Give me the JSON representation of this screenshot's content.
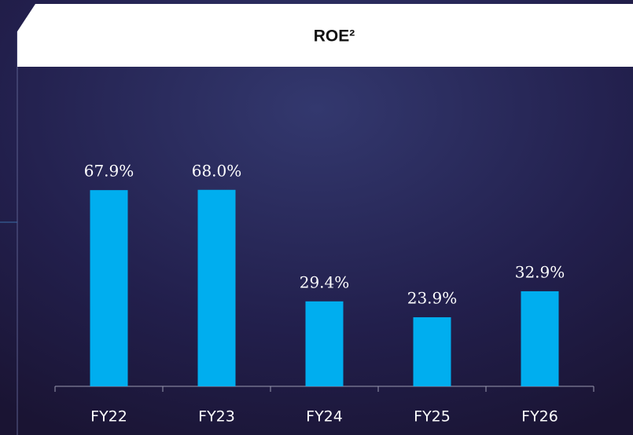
{
  "chart_data": {
    "type": "bar",
    "title": "ROE²",
    "categories": [
      "FY22",
      "FY23",
      "FY24",
      "FY25",
      "FY26"
    ],
    "values": [
      67.9,
      68.0,
      29.4,
      23.9,
      32.9
    ],
    "value_labels": [
      "67.9%",
      "68.0%",
      "29.4%",
      "23.9%",
      "32.9%"
    ],
    "color": "#00aeef"
  }
}
